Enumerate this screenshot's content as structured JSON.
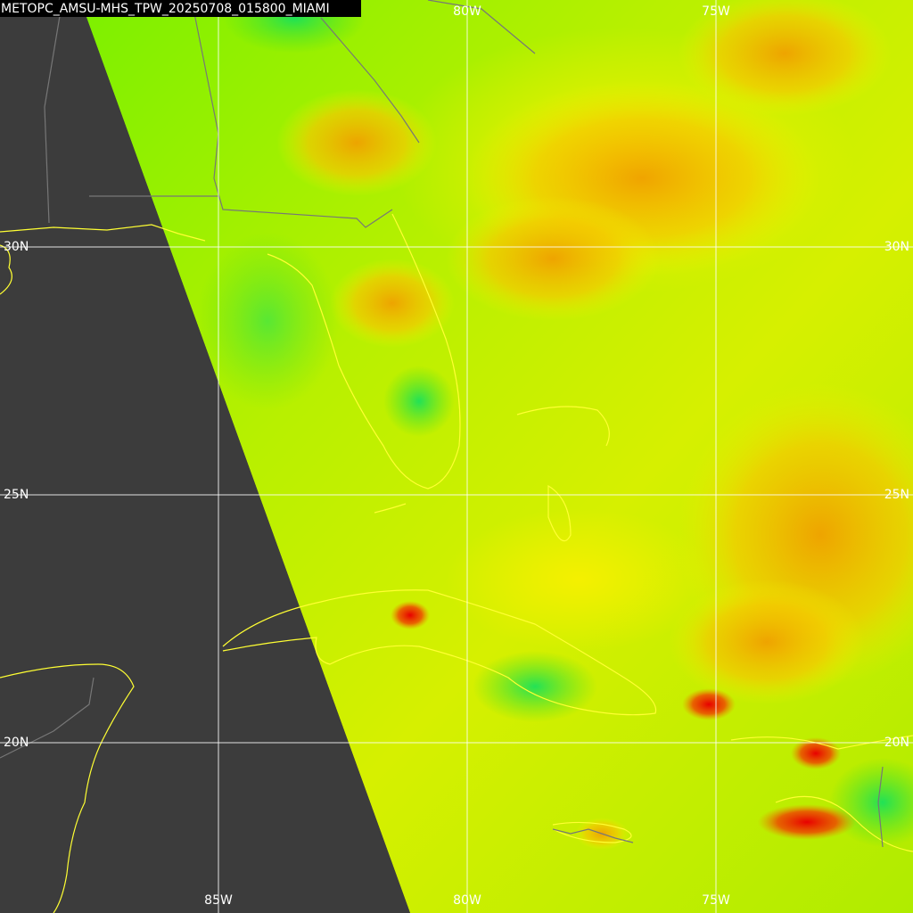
{
  "title": "METOPC_AMSU-MHS_TPW_20250708_015800_MIAMI",
  "top_labels": [
    "80W",
    "75W"
  ],
  "bottom_labels": [
    "85W",
    "80W",
    "75W"
  ],
  "left_labels": [
    "30N",
    "25N",
    "20N"
  ],
  "right_labels": [
    "30N",
    "25N",
    "20N"
  ]
}
